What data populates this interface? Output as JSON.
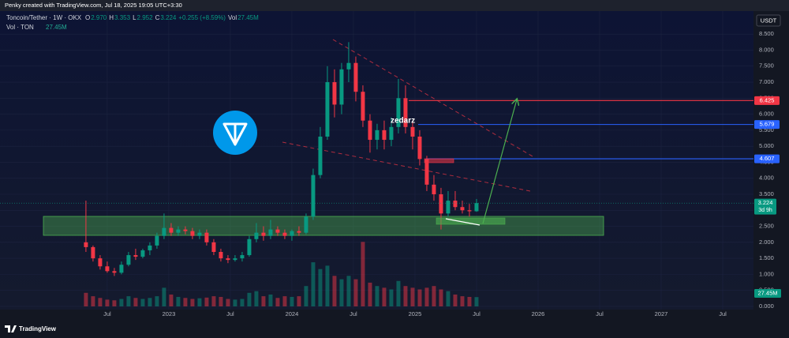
{
  "page": {
    "credit": "Penky created with TradingView.com, Jul 18, 2025 19:05 UTC+3:30",
    "currency": "USDT",
    "brand": "TradingView"
  },
  "chart_data": {
    "type": "candlestick",
    "title": "Toncoin/Tether · 1W · OKX",
    "legend": [
      {
        "key": "O",
        "value": "2.970"
      },
      {
        "key": "H",
        "value": "3.353"
      },
      {
        "key": "L",
        "value": "2.952"
      },
      {
        "key": "C",
        "value": "3.224"
      }
    ],
    "change": "+0.255 (+8.59%)",
    "volume_key": "Vol",
    "volume_title": "Vol · TON",
    "annotation": "zedarz",
    "countdown": "3d 9h",
    "up_color": "#089981",
    "down_color": "#f23645",
    "grid": true,
    "x": [
      -35,
      -32,
      -29,
      -26,
      -23,
      -20,
      -17,
      -14,
      -11,
      -8,
      -5,
      -2,
      1,
      4,
      7,
      10,
      13,
      16,
      19,
      22,
      25,
      28,
      31,
      34,
      37,
      40,
      43,
      46,
      49,
      52,
      55,
      58,
      61,
      64,
      67,
      70,
      73,
      76,
      79,
      82,
      85,
      88,
      91,
      94,
      97,
      100,
      103,
      106,
      109,
      112,
      115,
      118,
      121,
      124,
      127,
      130
    ],
    "open": [
      2.0,
      1.85,
      1.5,
      1.25,
      1.1,
      1.05,
      1.3,
      1.6,
      1.55,
      1.75,
      1.9,
      2.2,
      2.45,
      2.3,
      2.4,
      2.35,
      2.2,
      2.3,
      2.0,
      1.7,
      1.5,
      1.45,
      1.5,
      1.6,
      2.1,
      2.3,
      2.2,
      2.4,
      2.3,
      2.2,
      2.35,
      2.3,
      2.8,
      4.1,
      5.3,
      7.0,
      6.3,
      7.4,
      7.6,
      6.7,
      5.8,
      5.2,
      5.5,
      5.2,
      5.6,
      6.5,
      5.6,
      5.3,
      4.6,
      3.8,
      3.5,
      2.9,
      3.3,
      3.1,
      3.0,
      2.97
    ],
    "high": [
      3.3,
      1.9,
      1.6,
      1.4,
      1.2,
      1.4,
      1.7,
      1.8,
      1.8,
      2.0,
      2.3,
      2.9,
      2.6,
      2.5,
      2.5,
      2.45,
      2.4,
      2.4,
      2.1,
      1.8,
      1.6,
      1.6,
      1.7,
      2.2,
      2.6,
      2.5,
      2.7,
      2.5,
      2.4,
      2.4,
      2.5,
      2.9,
      4.3,
      5.6,
      7.5,
      7.4,
      7.6,
      8.25,
      7.8,
      6.9,
      6.0,
      5.7,
      5.8,
      5.9,
      7.1,
      6.9,
      5.8,
      5.5,
      4.7,
      4.1,
      3.7,
      3.6,
      3.6,
      3.3,
      3.2,
      3.353
    ],
    "low": [
      1.7,
      1.4,
      1.15,
      1.05,
      0.95,
      1.0,
      1.25,
      1.45,
      1.5,
      1.6,
      1.8,
      2.1,
      2.2,
      2.2,
      2.25,
      2.1,
      2.1,
      1.9,
      1.6,
      1.4,
      1.35,
      1.4,
      1.4,
      1.55,
      2.0,
      2.05,
      2.1,
      2.2,
      2.1,
      2.05,
      2.2,
      2.25,
      2.7,
      4.0,
      5.2,
      5.9,
      6.0,
      7.0,
      6.4,
      5.6,
      4.8,
      4.9,
      4.9,
      5.0,
      5.4,
      5.4,
      4.9,
      4.4,
      3.6,
      3.3,
      2.4,
      2.8,
      3.0,
      2.9,
      2.8,
      2.952
    ],
    "close": [
      1.85,
      1.5,
      1.25,
      1.1,
      1.05,
      1.3,
      1.6,
      1.55,
      1.75,
      1.9,
      2.2,
      2.45,
      2.3,
      2.4,
      2.35,
      2.2,
      2.3,
      2.0,
      1.7,
      1.5,
      1.45,
      1.5,
      1.6,
      2.1,
      2.3,
      2.2,
      2.4,
      2.3,
      2.2,
      2.35,
      2.3,
      2.8,
      4.1,
      5.3,
      7.0,
      6.3,
      7.4,
      7.6,
      6.7,
      5.8,
      5.2,
      5.5,
      5.2,
      5.6,
      6.5,
      5.6,
      5.3,
      4.6,
      3.8,
      3.5,
      2.9,
      3.3,
      3.1,
      3.0,
      2.97,
      3.224
    ],
    "volume": {
      "values": [
        40,
        30,
        25,
        20,
        18,
        22,
        30,
        25,
        22,
        25,
        30,
        55,
        35,
        28,
        25,
        22,
        24,
        26,
        30,
        28,
        22,
        20,
        22,
        40,
        45,
        30,
        35,
        25,
        30,
        28,
        30,
        60,
        130,
        110,
        120,
        90,
        80,
        90,
        80,
        190,
        70,
        60,
        55,
        50,
        75,
        60,
        55,
        50,
        55,
        60,
        50,
        45,
        35,
        30,
        28,
        27.45
      ],
      "value_labels": [
        null,
        null,
        null,
        null,
        null,
        null,
        null,
        null,
        null,
        null,
        null,
        null,
        null,
        null,
        null,
        null,
        null,
        null,
        null,
        null,
        null,
        null,
        null,
        null,
        null,
        null,
        null,
        null,
        null,
        null,
        null,
        null,
        null,
        null,
        null,
        null,
        null,
        null,
        null,
        null,
        null,
        null,
        null,
        null,
        null,
        null,
        null,
        null,
        null,
        null,
        null,
        null,
        null,
        null,
        null,
        "27.45M"
      ]
    },
    "levels": [
      {
        "value": 6.425,
        "color": "#f23645"
      },
      {
        "value": 5.679,
        "color": "#2962ff"
      },
      {
        "value": 4.607,
        "color": "#2962ff"
      }
    ],
    "xlim": [
      -71.3,
      247
    ],
    "xticks": [
      {
        "value": -26,
        "label": "Jul"
      },
      {
        "value": 0,
        "label": "2023"
      },
      {
        "value": 26,
        "label": "Jul"
      },
      {
        "value": 52,
        "label": "2024"
      },
      {
        "value": 78,
        "label": "Jul"
      },
      {
        "value": 104,
        "label": "2025"
      },
      {
        "value": 130,
        "label": "Jul"
      },
      {
        "value": 156,
        "label": "2026"
      },
      {
        "value": 182,
        "label": "Jul"
      },
      {
        "value": 208,
        "label": "2027"
      },
      {
        "value": 234,
        "label": "Jul"
      }
    ],
    "ylim": [
      -0.1,
      9.22
    ],
    "yticks": [
      {
        "value": 0,
        "label": "0.000"
      },
      {
        "value": 0.5,
        "label": "0.500"
      },
      {
        "value": 1,
        "label": "1.000"
      },
      {
        "value": 1.5,
        "label": "1.500"
      },
      {
        "value": 2,
        "label": "2.000"
      },
      {
        "value": 2.5,
        "label": "2.500"
      },
      {
        "value": 3,
        "label": "3.000"
      },
      {
        "value": 3.5,
        "label": "3.500"
      },
      {
        "value": 4,
        "label": "4.000"
      },
      {
        "value": 4.5,
        "label": "4.500"
      },
      {
        "value": 5,
        "label": "5.000"
      },
      {
        "value": 5.5,
        "label": "5.500"
      },
      {
        "value": 6,
        "label": "6.000"
      },
      {
        "value": 6.5,
        "label": "6.500"
      },
      {
        "value": 7,
        "label": "7.000"
      },
      {
        "value": 7.5,
        "label": "7.500"
      },
      {
        "value": 8,
        "label": "8.000"
      },
      {
        "value": 8.5,
        "label": "8.500"
      }
    ]
  }
}
